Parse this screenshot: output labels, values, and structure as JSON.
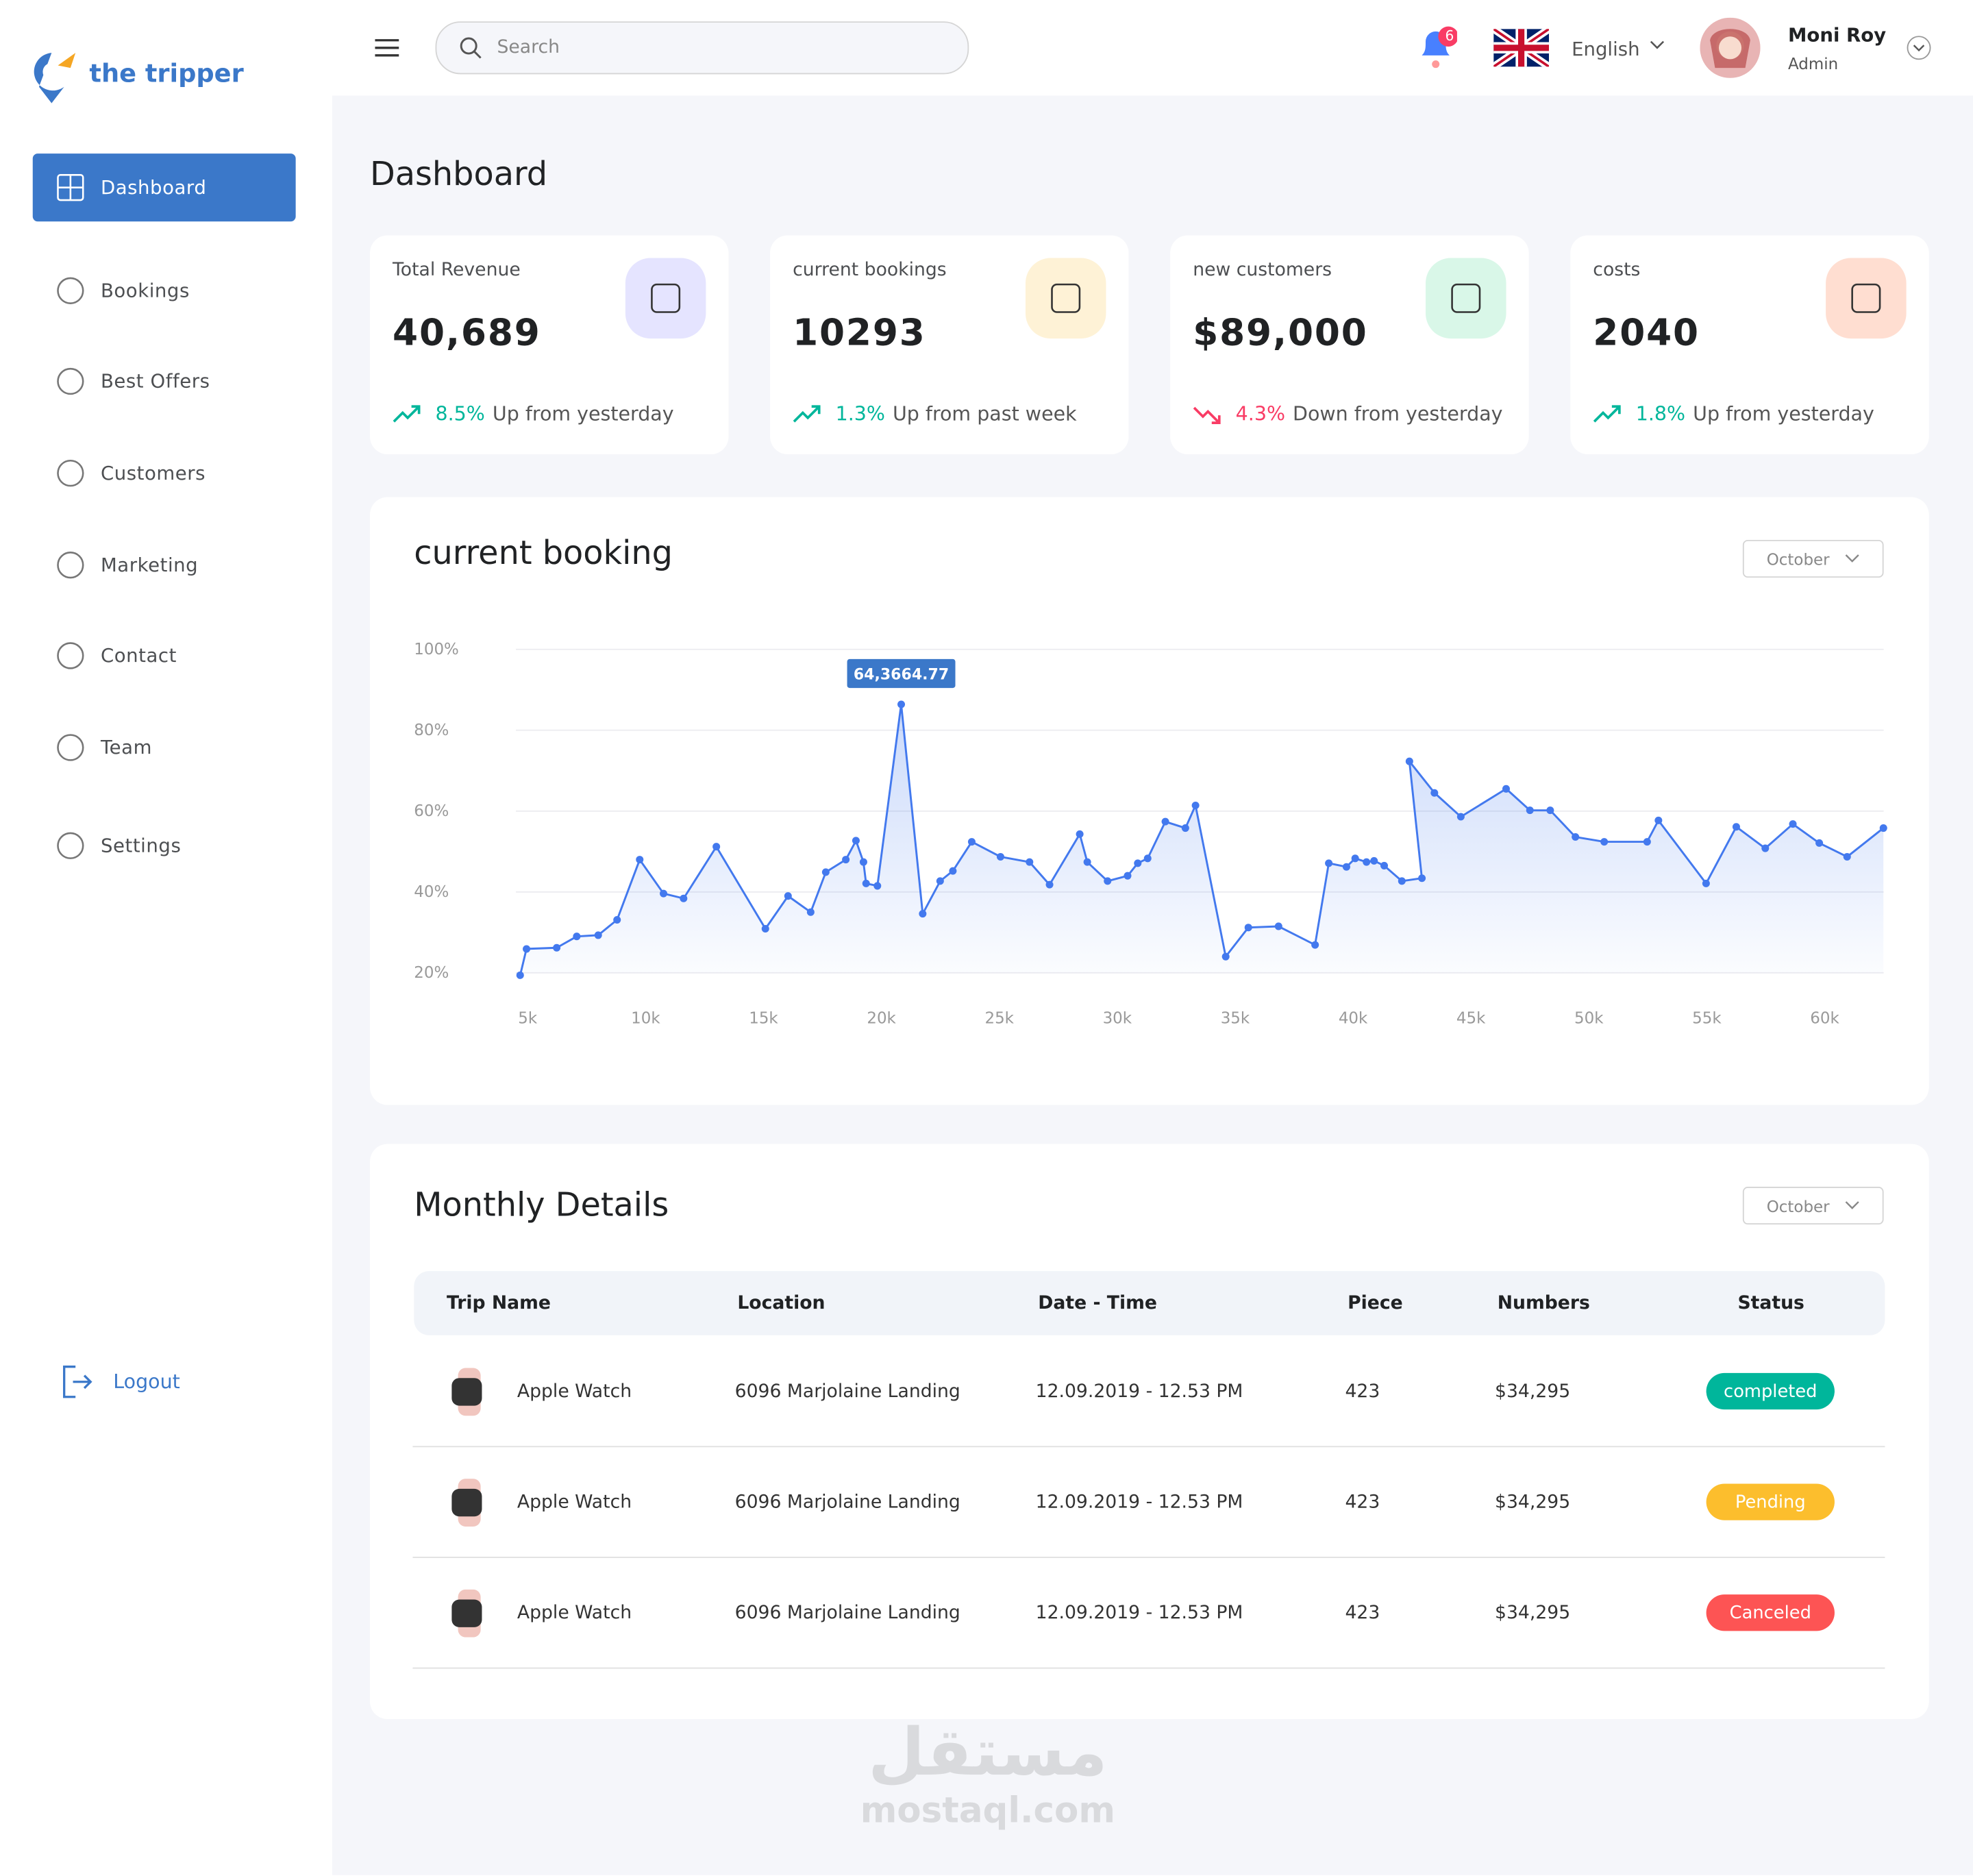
{
  "brand": "the tripper",
  "nav": [
    "Dashboard",
    "Bookings",
    "Best Offers",
    "Customers",
    "Marketing",
    "Contact",
    "Team",
    "Settings"
  ],
  "logout": "Logout",
  "header": {
    "search_placeholder": "Search",
    "notifications": "6",
    "language": "English",
    "user": {
      "name": "Moni Roy",
      "role": "Admin"
    }
  },
  "page_title": "Dashboard",
  "stats": [
    {
      "label": "Total Revenue",
      "value": "40,689",
      "change": "8.5%",
      "note": "Up from yesterday",
      "color": "#00b69b",
      "icon_bg": "#e5e4ff"
    },
    {
      "label": "current bookings",
      "value": "10293",
      "change": "1.3%",
      "note": "Up from past week",
      "color": "#00b69b",
      "icon_bg": "#fef2d6"
    },
    {
      "label": "new customers",
      "value": "$89,000",
      "change": "4.3%",
      "note": "Down from yesterday",
      "color": "#f93c65",
      "icon_bg": "#d9f7e8"
    },
    {
      "label": "costs",
      "value": "2040",
      "change": "1.8%",
      "note": "Up from yesterday",
      "color": "#00b69b",
      "icon_bg": "#ffded1"
    }
  ],
  "chart_data": {
    "type": "line",
    "title": "current booking",
    "filter": "October",
    "tooltip": "64,3664.77",
    "color": "#4379ee",
    "x": [
      4680,
      4950,
      6230,
      7080,
      7990,
      8790,
      9750,
      10760,
      11610,
      13000,
      15080,
      16040,
      17000,
      17640,
      18490,
      18920,
      19240,
      19350,
      19830,
      20840,
      21750,
      22490,
      23030,
      23830,
      25050,
      26280,
      27130,
      28410,
      28730,
      29590,
      30440,
      30870,
      31290,
      32040,
      32890,
      33320,
      34600,
      35560,
      36840,
      38390,
      38970,
      39720,
      40090,
      40570,
      40890,
      41320,
      42070,
      42920,
      42390,
      43450,
      44570,
      46490,
      47500,
      48360,
      49430,
      50650,
      52470,
      52950,
      54970,
      56250,
      57480,
      58650,
      59770,
      60950,
      62490
    ],
    "values": [
      19.4,
      25.9,
      26.2,
      29.0,
      29.3,
      33.1,
      48.0,
      39.6,
      38.4,
      51.2,
      30.9,
      39.0,
      35.0,
      44.9,
      48.0,
      52.7,
      47.4,
      42.1,
      41.5,
      86.4,
      34.6,
      42.7,
      45.2,
      52.4,
      48.7,
      47.4,
      41.8,
      54.3,
      47.4,
      42.7,
      44.0,
      47.1,
      48.3,
      57.4,
      55.8,
      61.4,
      24.0,
      31.2,
      31.5,
      26.9,
      47.1,
      46.2,
      48.3,
      47.4,
      47.7,
      46.5,
      42.7,
      43.4,
      72.3,
      64.5,
      58.6,
      65.5,
      60.2,
      60.2,
      53.6,
      52.4,
      52.4,
      57.7,
      42.1,
      56.1,
      50.8,
      56.8,
      52.1,
      48.7,
      55.8
    ],
    "xlim": [
      4500,
      62500
    ],
    "xticks": [
      {
        "value": 5000,
        "label": "5k"
      },
      {
        "value": 10000,
        "label": "10k"
      },
      {
        "value": 15000,
        "label": "15k"
      },
      {
        "value": 20000,
        "label": "20k"
      },
      {
        "value": 25000,
        "label": "25k"
      },
      {
        "value": 30000,
        "label": "30k"
      },
      {
        "value": 35000,
        "label": "35k"
      },
      {
        "value": 40000,
        "label": "40k"
      },
      {
        "value": 45000,
        "label": "45k"
      },
      {
        "value": 50000,
        "label": "50k"
      },
      {
        "value": 55000,
        "label": "55k"
      },
      {
        "value": 60000,
        "label": "60k"
      }
    ],
    "ylim": [
      20,
      100
    ],
    "yticks": [
      {
        "value": 20,
        "label": "20%"
      },
      {
        "value": 40,
        "label": "40%"
      },
      {
        "value": 60,
        "label": "60%"
      },
      {
        "value": 80,
        "label": "80%"
      },
      {
        "value": 100,
        "label": "100%"
      }
    ],
    "grid": true
  },
  "table": {
    "title": "Monthly Details",
    "filter": "October",
    "headers": [
      "Trip  Name",
      "Location",
      "Date - Time",
      "Piece",
      "Numbers",
      "Status"
    ],
    "rows": [
      {
        "cells": [
          "Apple Watch",
          "6096 Marjolaine Landing",
          "12.09.2019 - 12.53 PM",
          "423",
          "$34,295"
        ],
        "status": {
          "label": "completed",
          "color": "#00b69b"
        }
      },
      {
        "cells": [
          "Apple Watch",
          "6096 Marjolaine Landing",
          "12.09.2019 - 12.53 PM",
          "423",
          "$34,295"
        ],
        "status": {
          "label": "Pending",
          "color": "#fcbe2d"
        }
      },
      {
        "cells": [
          "Apple Watch",
          "6096 Marjolaine Landing",
          "12.09.2019 - 12.53 PM",
          "423",
          "$34,295"
        ],
        "status": {
          "label": "Canceled",
          "color": "#fd5454"
        }
      }
    ]
  },
  "watermark": {
    "arabic": "مستقل",
    "latin": "mostaql.com"
  }
}
